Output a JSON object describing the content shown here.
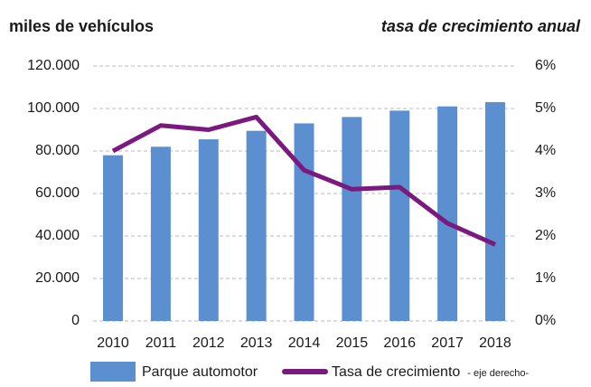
{
  "chart_data": {
    "type": "bar_line",
    "ylabel": "miles de vehículos",
    "y2label": "tasa de crecimiento anual",
    "categories": [
      "2010",
      "2011",
      "2012",
      "2013",
      "2014",
      "2015",
      "2016",
      "2017",
      "2018"
    ],
    "series": [
      {
        "name": "Parque automotor",
        "type": "bar",
        "color": "#5b8fd0",
        "values": [
          78000,
          82000,
          85500,
          89500,
          93000,
          96000,
          99000,
          101000,
          103000
        ]
      },
      {
        "name": "Tasa de crecimiento",
        "type": "line",
        "axis": "y2",
        "color": "#7b1a7e",
        "values": [
          4.0,
          4.6,
          4.5,
          4.8,
          3.55,
          3.1,
          3.15,
          2.3,
          1.8
        ]
      }
    ],
    "legend_note": "- eje derecho-",
    "ylim": [
      0,
      120000
    ],
    "yticks": [
      0,
      {
        "value": 20000,
        "label": "20.000"
      },
      {
        "value": 40000,
        "label": "40.000"
      },
      {
        "value": 60000,
        "label": "60.000"
      },
      {
        "value": 80000,
        "label": "80.000"
      },
      {
        "value": 100000,
        "label": "100.000"
      },
      {
        "value": 120000,
        "label": "120.000"
      }
    ],
    "y2lim": [
      0,
      6
    ],
    "y2ticks": [
      {
        "value": 0,
        "label": "0%"
      },
      {
        "value": 1,
        "label": "1%"
      },
      {
        "value": 2,
        "label": "2%"
      },
      {
        "value": 3,
        "label": "3%"
      },
      {
        "value": 4,
        "label": "4%"
      },
      {
        "value": 5,
        "label": "5%"
      },
      {
        "value": 6,
        "label": "6%"
      }
    ],
    "grid": true
  }
}
